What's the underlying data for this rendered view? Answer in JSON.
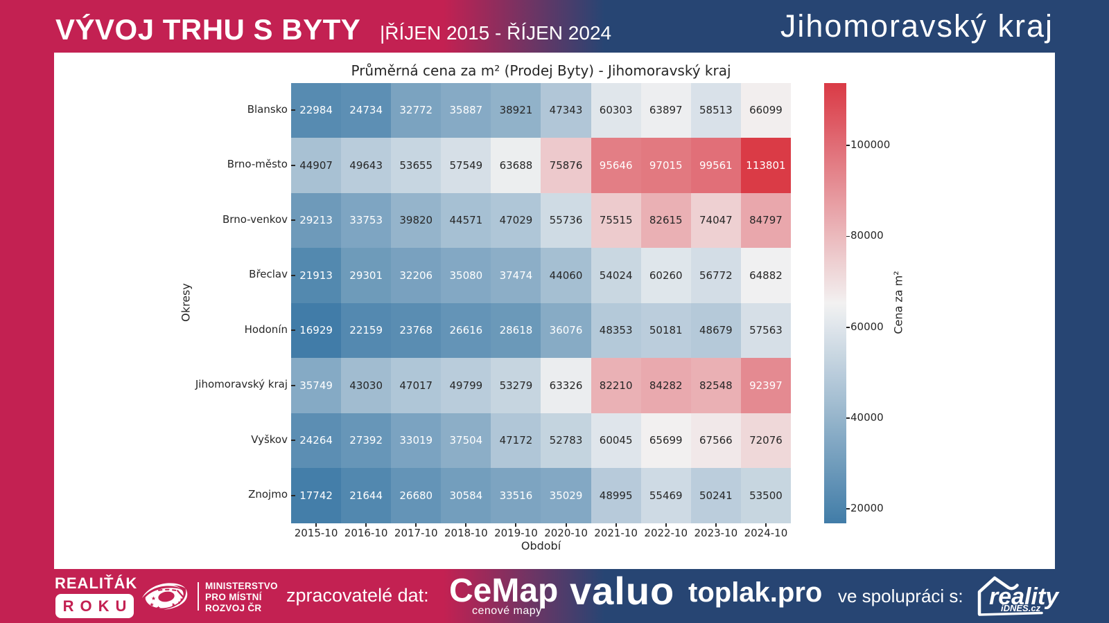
{
  "header": {
    "title": "VÝVOJ TRHU S BYTY",
    "subtitle": "|ŘÍJEN 2015 - ŘÍJEN 2024",
    "region": "Jihomoravský kraj"
  },
  "colors": {
    "crimson": "#C32152",
    "navy": "#274573",
    "panel": "#FFFFFF",
    "annotation_dark": "#262626",
    "annotation_light": "#FFFFFF"
  },
  "chart_data": {
    "type": "heatmap",
    "title": "Průměrná cena za m² (Prodej Byty) - Jihomoravský kraj",
    "xlabel": "Období",
    "ylabel": "Okresy",
    "colorbar_label": "Cena za m²",
    "x": [
      "2015-10",
      "2016-10",
      "2017-10",
      "2018-10",
      "2019-10",
      "2020-10",
      "2021-10",
      "2022-10",
      "2023-10",
      "2024-10"
    ],
    "y": [
      "Blansko",
      "Brno-město",
      "Brno-venkov",
      "Břeclav",
      "Hodonín",
      "Jihomoravský kraj",
      "Vyškov",
      "Znojmo"
    ],
    "values": [
      [
        22984,
        24734,
        32772,
        35887,
        38921,
        47343,
        60303,
        63897,
        58513,
        66099
      ],
      [
        44907,
        49643,
        53655,
        57549,
        63688,
        75876,
        95646,
        97015,
        99561,
        113801
      ],
      [
        29213,
        33753,
        39820,
        44571,
        47029,
        55736,
        75515,
        82615,
        74047,
        84797
      ],
      [
        21913,
        29301,
        32206,
        35080,
        37474,
        44060,
        54024,
        60260,
        56772,
        64882
      ],
      [
        16929,
        22159,
        23768,
        26616,
        28618,
        36076,
        48353,
        50181,
        48679,
        57563
      ],
      [
        35749,
        43030,
        47017,
        49799,
        53279,
        63326,
        82210,
        84282,
        82548,
        92397
      ],
      [
        24264,
        27392,
        33019,
        37504,
        47172,
        52783,
        60045,
        65699,
        67566,
        72076
      ],
      [
        17742,
        21644,
        26680,
        30584,
        33516,
        35029,
        48995,
        55469,
        50241,
        53500
      ]
    ],
    "vmin": 16929,
    "vmax": 113801,
    "colorbar_ticks": [
      20000,
      40000,
      60000,
      80000,
      100000
    ],
    "colormap_stops": [
      "#417CA8",
      "#4C84AC",
      "#578BB1",
      "#6292B6",
      "#6D9ABA",
      "#78A1BF",
      "#83A8C4",
      "#8EB0C8",
      "#9AB7CD",
      "#A5BFD2",
      "#B0C6D7",
      "#BBCDDC",
      "#C6D5E0",
      "#D1DCE5",
      "#DCE3EA",
      "#E7EBEE",
      "#F2F1F1",
      "#F1E5E6",
      "#EFDADB",
      "#EECFD1",
      "#ECC3C6",
      "#EBB8BB",
      "#E9ACB1",
      "#E8A1A6",
      "#E6959B",
      "#E48990",
      "#E37E85",
      "#E1727B",
      "#E06770",
      "#DE5B65",
      "#DD505A",
      "#DB4550",
      "#DA3B46"
    ],
    "luminance_threshold": 0.408,
    "legend_position": "right",
    "grid": "off"
  },
  "footer": {
    "realitak_title": "REALIŤÁK",
    "realitak_badge": "ROKU",
    "ministry_line1": "MINISTERSTVO",
    "ministry_line2": "PRO MÍSTNÍ",
    "ministry_line3": "ROZVOJ ČR",
    "data_processors_label": "zpracovatelé dat:",
    "cemap_name": "CeMap",
    "cemap_tagline": "cenové mapy",
    "valuo_name": "valuo",
    "toplak_name": "toplak.pro",
    "cooperation_label": "ve spolupráci s:",
    "reality_name": "reality",
    "reality_subname": "iDNES.cz"
  }
}
